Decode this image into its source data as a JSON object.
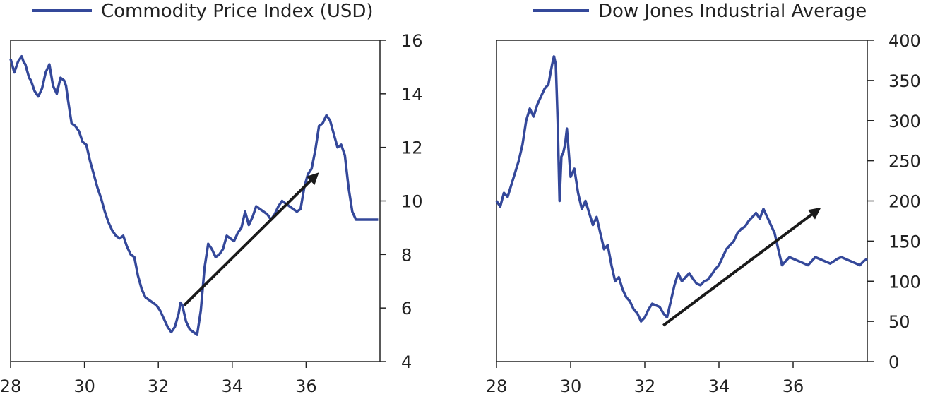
{
  "colors": {
    "series": "#34489a",
    "arrow": "#1a1a1a",
    "axis": "#222222",
    "text": "#222222"
  },
  "chart_data": [
    {
      "type": "line",
      "legend": {
        "label": "Commodity Price Index (USD)",
        "placement": "top"
      },
      "xlim": [
        28,
        38
      ],
      "ylim": [
        4,
        16
      ],
      "x_ticks": [
        28,
        30,
        32,
        34,
        36
      ],
      "x_tick_labels": [
        "28",
        "30",
        "32",
        "34",
        "36"
      ],
      "y_ticks": [
        4,
        6,
        8,
        10,
        12,
        14,
        16
      ],
      "y_tick_labels": [
        "4",
        "6",
        "8",
        "10",
        "12",
        "14",
        "16"
      ],
      "y_axis_side": "right",
      "grid": false,
      "series": [
        {
          "name": "Commodity Price Index (USD)",
          "x": [
            28.0,
            28.1,
            28.2,
            28.3,
            28.35,
            28.4,
            28.5,
            28.55,
            28.65,
            28.75,
            28.85,
            28.95,
            29.05,
            29.15,
            29.25,
            29.35,
            29.45,
            29.5,
            29.55,
            29.65,
            29.75,
            29.85,
            29.95,
            30.05,
            30.15,
            30.25,
            30.35,
            30.45,
            30.55,
            30.65,
            30.75,
            30.85,
            30.95,
            31.05,
            31.15,
            31.25,
            31.35,
            31.45,
            31.55,
            31.65,
            31.75,
            31.85,
            31.95,
            32.05,
            32.15,
            32.25,
            32.35,
            32.45,
            32.55,
            32.6,
            32.65,
            32.7,
            32.75,
            32.85,
            32.95,
            33.05,
            33.15,
            33.25,
            33.35,
            33.45,
            33.55,
            33.65,
            33.75,
            33.85,
            33.95,
            34.05,
            34.15,
            34.25,
            34.35,
            34.45,
            34.55,
            34.65,
            34.75,
            34.85,
            34.95,
            35.05,
            35.15,
            35.25,
            35.35,
            35.45,
            35.55,
            35.65,
            35.75,
            35.85,
            35.95,
            36.05,
            36.15,
            36.25,
            36.35,
            36.45,
            36.55,
            36.65,
            36.75,
            36.85,
            36.95,
            37.05,
            37.15,
            37.25,
            37.35,
            37.45,
            37.55,
            37.65,
            37.75,
            37.85,
            37.95
          ],
          "y": [
            15.3,
            14.8,
            15.2,
            15.4,
            15.2,
            15.1,
            14.6,
            14.5,
            14.1,
            13.9,
            14.2,
            14.8,
            15.1,
            14.3,
            14.0,
            14.6,
            14.5,
            14.3,
            13.8,
            12.9,
            12.8,
            12.6,
            12.2,
            12.1,
            11.5,
            11.0,
            10.5,
            10.1,
            9.6,
            9.2,
            8.9,
            8.7,
            8.6,
            8.7,
            8.3,
            8.0,
            7.9,
            7.2,
            6.7,
            6.4,
            6.3,
            6.2,
            6.1,
            5.9,
            5.6,
            5.3,
            5.1,
            5.3,
            5.8,
            6.2,
            6.1,
            5.8,
            5.5,
            5.2,
            5.1,
            5.0,
            5.9,
            7.5,
            8.4,
            8.2,
            7.9,
            8.0,
            8.2,
            8.7,
            8.6,
            8.5,
            8.8,
            9.0,
            9.6,
            9.1,
            9.4,
            9.8,
            9.7,
            9.6,
            9.5,
            9.3,
            9.5,
            9.8,
            10.0,
            9.9,
            9.8,
            9.7,
            9.6,
            9.7,
            10.5,
            11.0,
            11.2,
            11.9,
            12.8,
            12.9,
            13.2,
            13.0,
            12.5,
            12.0,
            12.1,
            11.7,
            10.5,
            9.6,
            9.3,
            9.3,
            9.3,
            9.3,
            9.3,
            9.3,
            9.3
          ]
        }
      ],
      "annotations": [
        {
          "type": "arrow",
          "from": [
            32.7,
            6.1
          ],
          "to": [
            36.3,
            11.0
          ]
        }
      ]
    },
    {
      "type": "line",
      "legend": {
        "label": "Dow Jones Industrial Average",
        "placement": "top"
      },
      "xlim": [
        28,
        38
      ],
      "ylim": [
        0,
        400
      ],
      "x_ticks": [
        28,
        30,
        32,
        34,
        36
      ],
      "x_tick_labels": [
        "28",
        "30",
        "32",
        "34",
        "36"
      ],
      "y_ticks": [
        0,
        50,
        100,
        150,
        200,
        250,
        300,
        350,
        400
      ],
      "y_tick_labels": [
        "0",
        "50",
        "100",
        "150",
        "200",
        "250",
        "300",
        "350",
        "400"
      ],
      "y_axis_side": "right",
      "grid": false,
      "series": [
        {
          "name": "Dow Jones Industrial Average",
          "x": [
            28.0,
            28.1,
            28.2,
            28.3,
            28.4,
            28.5,
            28.6,
            28.7,
            28.8,
            28.9,
            29.0,
            29.1,
            29.2,
            29.3,
            29.4,
            29.5,
            29.55,
            29.6,
            29.65,
            29.7,
            29.75,
            29.8,
            29.85,
            29.9,
            30.0,
            30.1,
            30.2,
            30.3,
            30.4,
            30.5,
            30.6,
            30.7,
            30.8,
            30.9,
            31.0,
            31.1,
            31.2,
            31.3,
            31.4,
            31.5,
            31.6,
            31.7,
            31.8,
            31.9,
            32.0,
            32.1,
            32.2,
            32.3,
            32.4,
            32.5,
            32.6,
            32.7,
            32.8,
            32.9,
            33.0,
            33.1,
            33.2,
            33.3,
            33.4,
            33.5,
            33.6,
            33.7,
            33.8,
            33.9,
            34.0,
            34.1,
            34.2,
            34.3,
            34.4,
            34.5,
            34.6,
            34.7,
            34.8,
            34.9,
            35.0,
            35.1,
            35.2,
            35.3,
            35.4,
            35.5,
            35.6,
            35.7,
            35.8,
            35.9,
            36.0,
            36.1,
            36.2,
            36.3,
            36.4,
            36.5,
            36.6,
            36.7,
            36.8,
            36.9,
            37.0,
            37.1,
            37.2,
            37.3,
            37.4,
            37.5,
            37.6,
            37.7,
            37.8,
            37.9,
            38.0
          ],
          "y": [
            200,
            193,
            210,
            205,
            220,
            235,
            250,
            270,
            300,
            315,
            305,
            320,
            330,
            340,
            345,
            370,
            380,
            370,
            300,
            200,
            255,
            260,
            270,
            290,
            230,
            240,
            210,
            190,
            200,
            185,
            170,
            180,
            160,
            140,
            145,
            120,
            100,
            105,
            90,
            80,
            75,
            65,
            60,
            50,
            55,
            65,
            72,
            70,
            68,
            60,
            55,
            75,
            95,
            110,
            100,
            105,
            110,
            103,
            97,
            95,
            100,
            102,
            108,
            115,
            120,
            130,
            140,
            145,
            150,
            160,
            165,
            168,
            175,
            180,
            185,
            178,
            190,
            180,
            170,
            160,
            140,
            120,
            125,
            130,
            128,
            126,
            124,
            122,
            120,
            125,
            130,
            128,
            126,
            124,
            122,
            125,
            128,
            130,
            128,
            126,
            124,
            122,
            120,
            125,
            128
          ]
        }
      ],
      "annotations": [
        {
          "type": "arrow",
          "from": [
            32.5,
            45
          ],
          "to": [
            36.7,
            190
          ]
        }
      ]
    }
  ]
}
